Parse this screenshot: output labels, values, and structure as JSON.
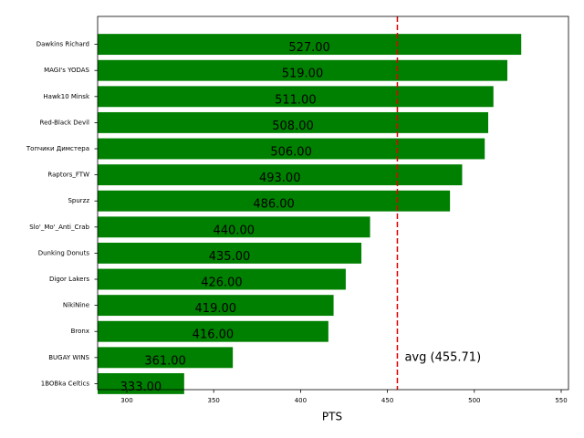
{
  "chart_data": {
    "type": "barh",
    "categories": [
      "Dawkins Richard",
      "MAGI's YODAS",
      "Hawk10 Minsk",
      "Red-Black Devil",
      "Топчики Димстера",
      "Raptors_FTW",
      "Spurzz",
      "Slo'_Mo'_Anti_Crab",
      "Dunking Donuts",
      "Digor Lakers",
      "NikiNine",
      "Bronx",
      "BUGAY WINS",
      "1BOBka Celtics"
    ],
    "values": [
      527,
      519,
      511,
      508,
      506,
      493,
      486,
      440,
      435,
      426,
      419,
      416,
      361,
      333
    ],
    "value_labels": [
      "527.00",
      "519.00",
      "511.00",
      "508.00",
      "506.00",
      "493.00",
      "486.00",
      "440.00",
      "435.00",
      "426.00",
      "419.00",
      "416.00",
      "361.00",
      "333.00"
    ],
    "color": "#008000",
    "xlabel": "PTS",
    "xlim": [
      283.2,
      554.2
    ],
    "xticks": [
      300,
      350,
      400,
      450,
      500,
      550
    ],
    "average": 455.71,
    "average_color": "#e00000",
    "annotation": "avg (455.71)"
  }
}
